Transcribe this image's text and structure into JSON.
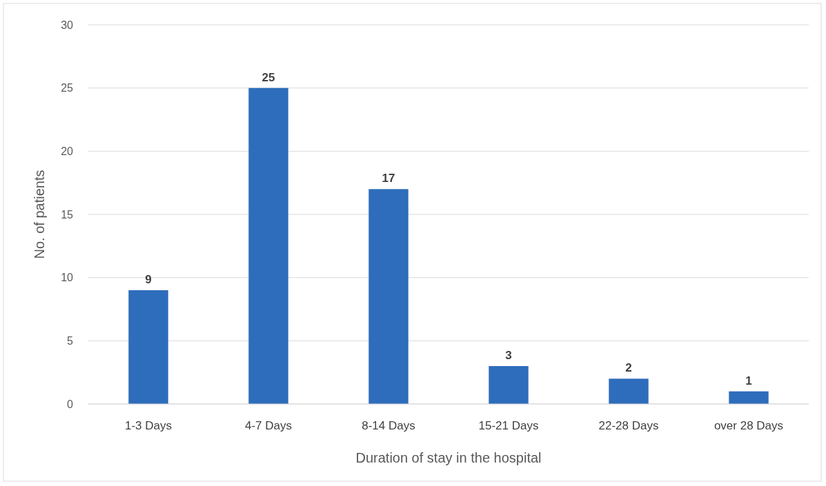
{
  "chart_data": {
    "type": "bar",
    "xlabel": "Duration of stay in the hospital",
    "ylabel": "No. of patients",
    "categories": [
      "1-3 Days",
      "4-7 Days",
      "8-14 Days",
      "15-21 Days",
      "22-28 Days",
      "over 28 Days"
    ],
    "values": [
      9,
      25,
      17,
      3,
      2,
      1
    ],
    "color": "#2e6dbb",
    "ylim": [
      0,
      30
    ],
    "yticks": [
      0,
      5,
      10,
      15,
      20,
      25,
      30
    ],
    "grid": "y",
    "data_labels": true
  }
}
